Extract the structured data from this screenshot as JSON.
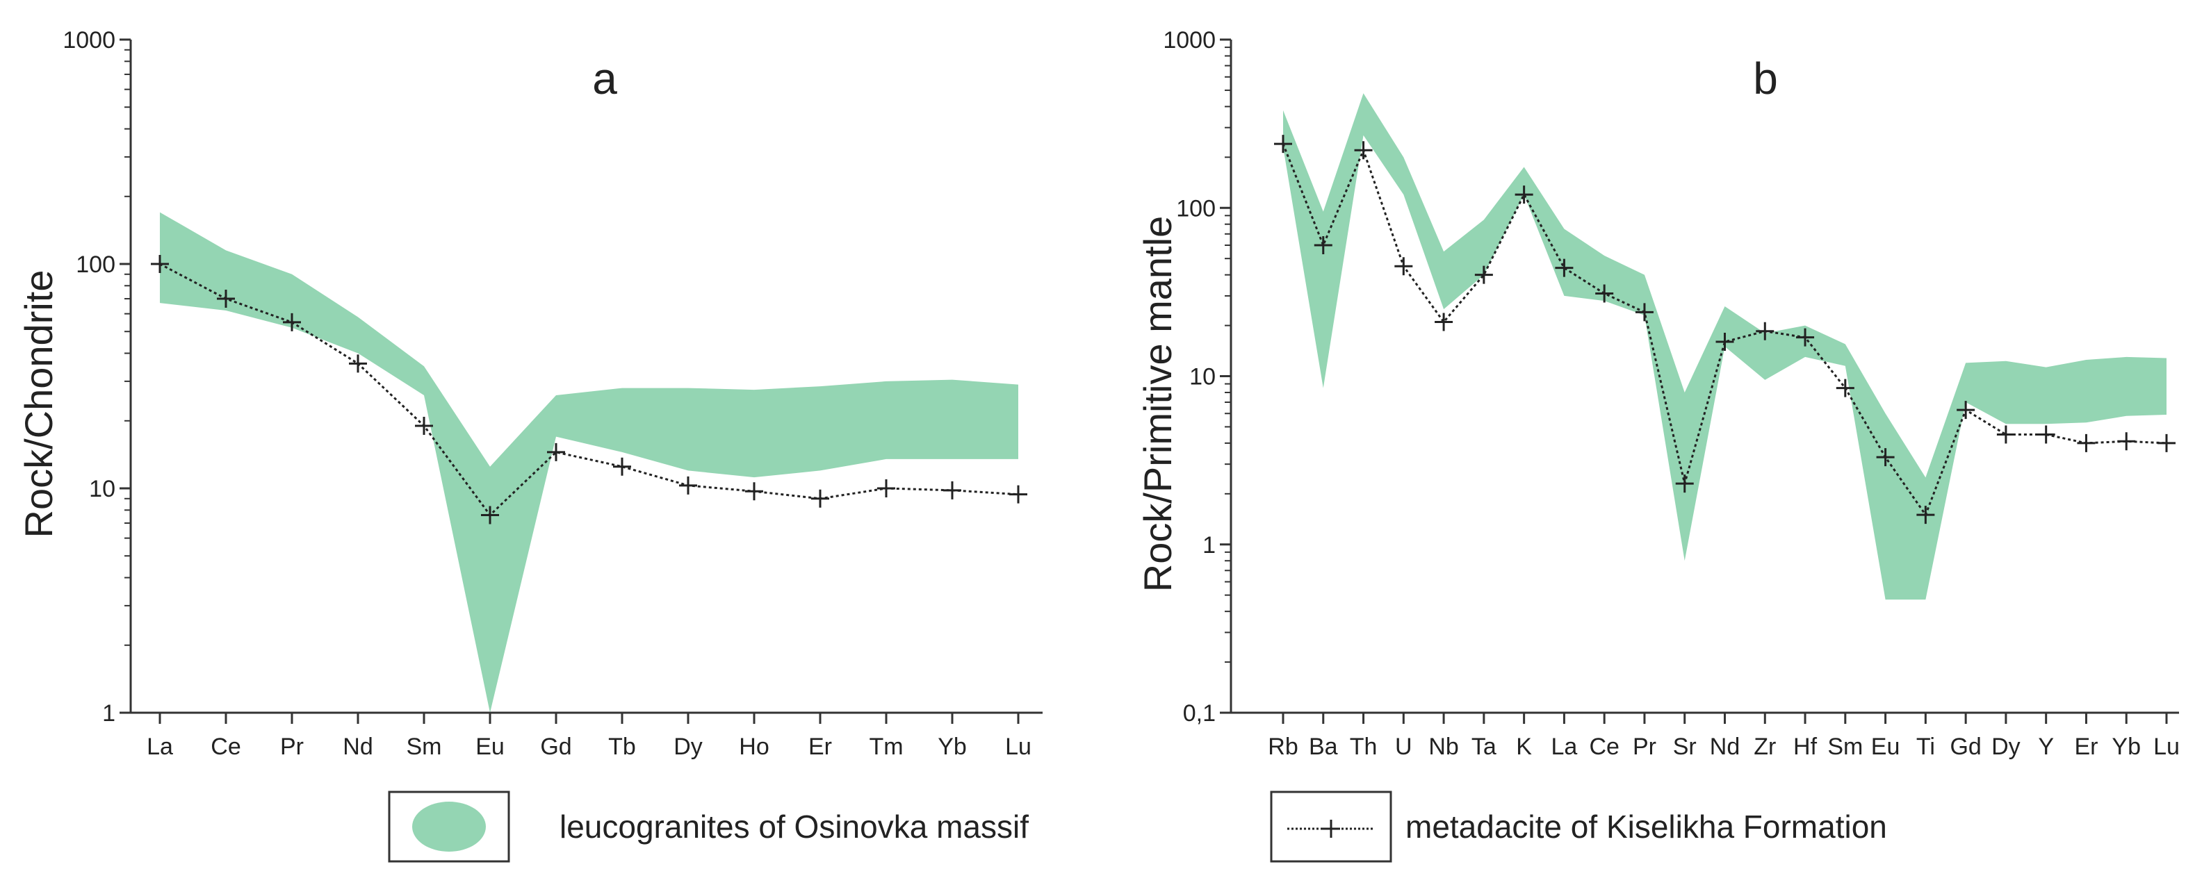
{
  "colors": {
    "band": "#94d5b3",
    "line": "#222222"
  },
  "legend": {
    "band_label": "leucogranites of Osinovka massif",
    "line_label": "metadacite of Kiselikha Formation"
  },
  "chart_data": [
    {
      "type": "area",
      "title": "a",
      "xlabel": "",
      "ylabel": "Rock/Chondrite",
      "yscale": "log",
      "ylim": [
        1,
        1000
      ],
      "yticks": [
        "1",
        "10",
        "100",
        "1000"
      ],
      "ytick_values": [
        1,
        10,
        100,
        1000
      ],
      "categories": [
        "La",
        "Ce",
        "Pr",
        "Nd",
        "Sm",
        "Eu",
        "Gd",
        "Tb",
        "Dy",
        "Ho",
        "Er",
        "Tm",
        "Yb",
        "Lu"
      ],
      "band": {
        "name": "leucogranites of Osinovka massif",
        "upper": [
          170,
          115,
          90,
          58,
          35,
          12.5,
          26,
          28,
          28,
          27.5,
          28.5,
          30,
          30.5,
          29
        ],
        "lower": [
          67,
          62,
          52,
          40,
          26,
          1.0,
          17,
          14.5,
          12,
          11.2,
          12,
          13.5,
          13.5,
          13.5
        ]
      },
      "series": [
        {
          "name": "metadacite of Kiselikha Formation",
          "values": [
            100,
            70,
            55,
            36,
            19,
            7.6,
            14.5,
            12.5,
            10.3,
            9.7,
            9.0,
            10,
            9.8,
            9.4
          ]
        }
      ]
    },
    {
      "type": "area",
      "title": "b",
      "xlabel": "",
      "ylabel": "Rock/Primitive mantle",
      "yscale": "log",
      "ylim": [
        0.1,
        1000
      ],
      "yticks": [
        "0,1",
        "1",
        "10",
        "100",
        "1000"
      ],
      "ytick_values": [
        0.1,
        1,
        10,
        100,
        1000
      ],
      "categories": [
        "Rb",
        "Ba",
        "Th",
        "U",
        "Nb",
        "Ta",
        "K",
        "La",
        "Ce",
        "Pr",
        "Sr",
        "Nd",
        "Zr",
        "Hf",
        "Sm",
        "Eu",
        "Ti",
        "Gd",
        "Dy",
        "Y",
        "Er",
        "Yb",
        "Lu"
      ],
      "band": {
        "name": "leucogranites of Osinovka massif",
        "upper": [
          380,
          95,
          480,
          200,
          55,
          85,
          175,
          75,
          52,
          40,
          8,
          26,
          18,
          20,
          15.5,
          6,
          2.5,
          12,
          12.3,
          11.3,
          12.5,
          13,
          12.8
        ],
        "lower": [
          230,
          8.5,
          270,
          120,
          25,
          40,
          120,
          30,
          28,
          23,
          0.8,
          15,
          9.5,
          13,
          11.5,
          0.47,
          0.47,
          7,
          5.2,
          5.2,
          5.3,
          5.8,
          5.9
        ]
      },
      "series": [
        {
          "name": "metadacite of Kiselikha Formation",
          "values": [
            240,
            60,
            220,
            45,
            21,
            40,
            120,
            44,
            31,
            24,
            2.3,
            16,
            18.5,
            17,
            8.5,
            3.3,
            1.5,
            6.3,
            4.5,
            4.5,
            4.0,
            4.1,
            4.0
          ]
        }
      ]
    }
  ]
}
